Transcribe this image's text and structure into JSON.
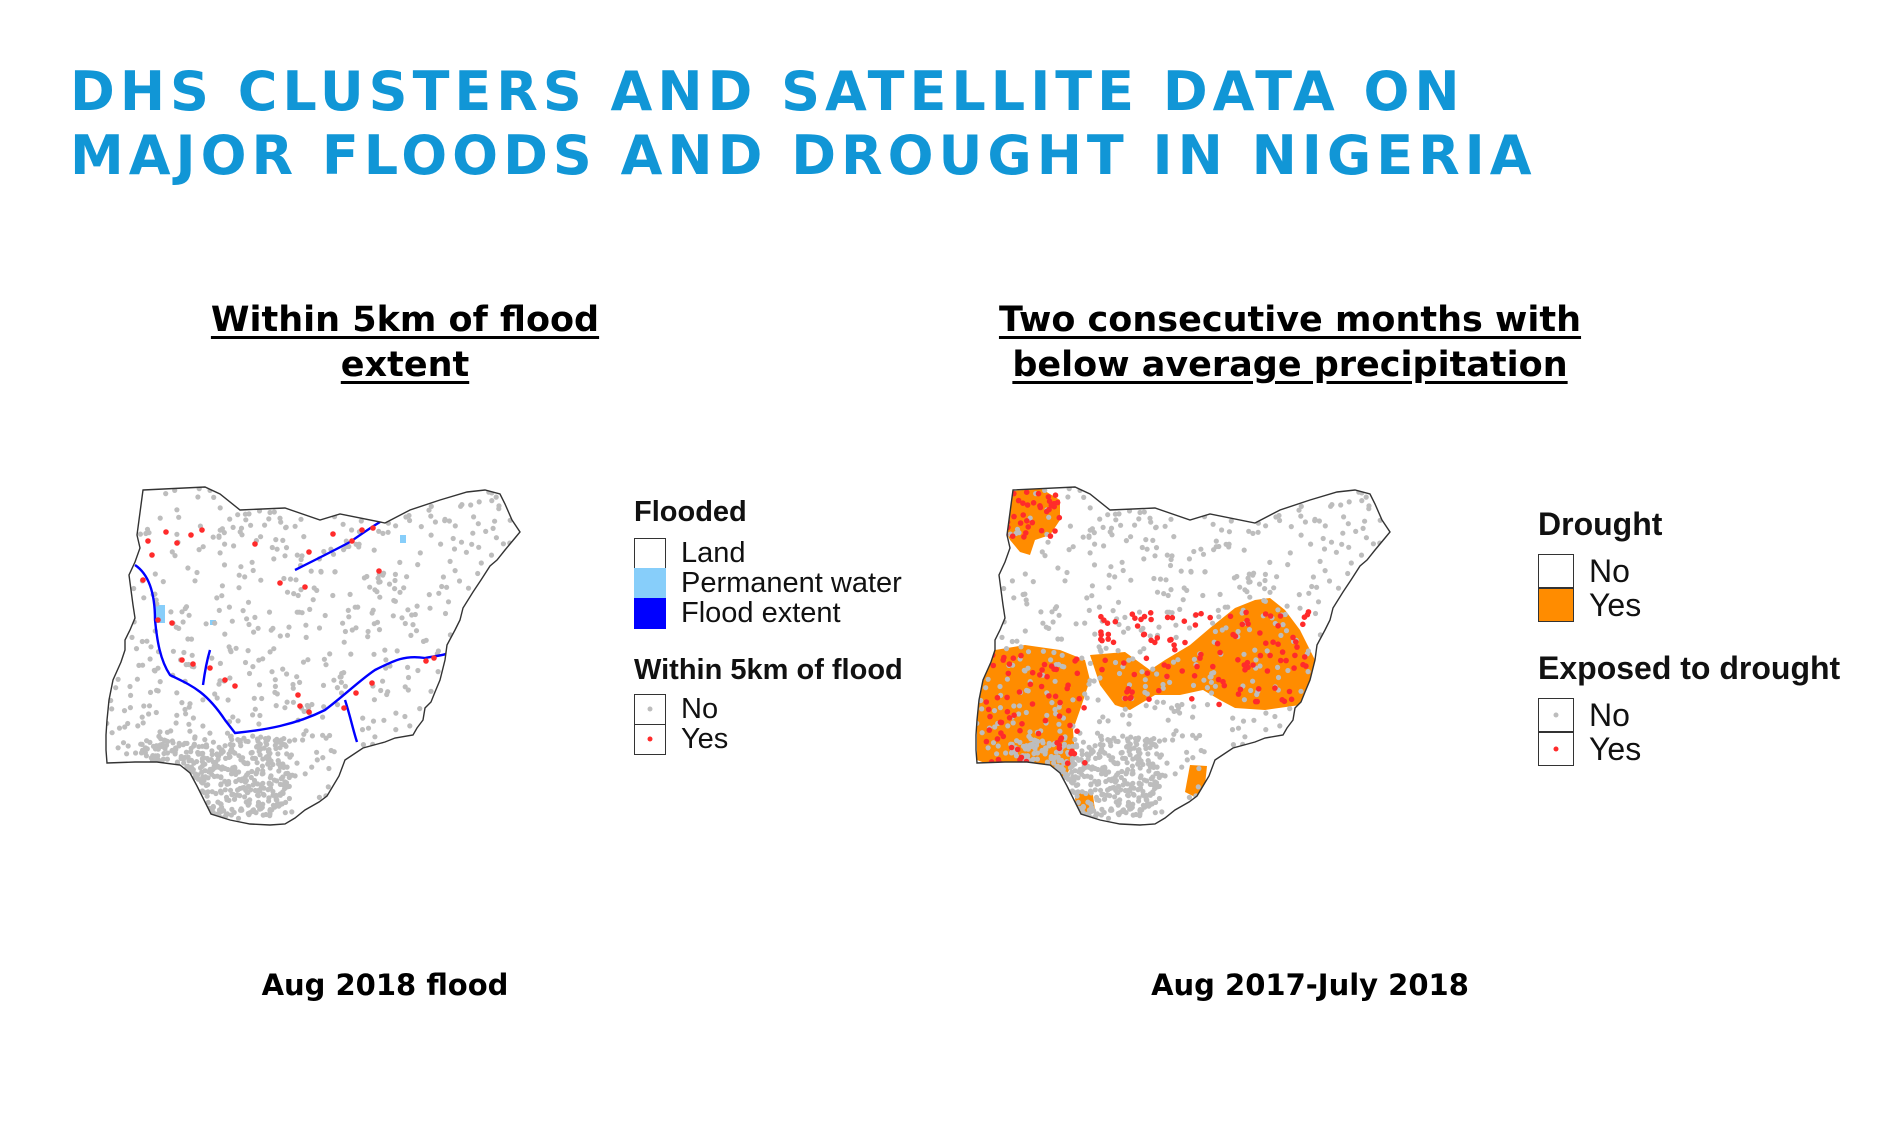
{
  "title": {
    "line1": "DHS CLUSTERS AND SATELLITE DATA ON",
    "line2": "MAJOR FLOODS AND DROUGHT IN NIGERIA"
  },
  "flood_panel": {
    "heading_line1": "Within 5km of flood",
    "heading_line2": "extent",
    "caption": "Aug 2018 flood",
    "legend": {
      "flooded_title": "Flooded",
      "flooded_items": [
        {
          "label": "Land",
          "color": "#ffffff"
        },
        {
          "label": "Permanent water",
          "color": "#87cefa"
        },
        {
          "label": "Flood extent",
          "color": "#0000ff"
        }
      ],
      "within_title": "Within 5km of flood",
      "within_items": [
        {
          "label": "No",
          "dot_color": "#bdbdbd"
        },
        {
          "label": "Yes",
          "dot_color": "#ff2b2b"
        }
      ]
    }
  },
  "drought_panel": {
    "heading_line1": "Two consecutive months with",
    "heading_line2": "below average precipitation",
    "caption": "Aug 2017-July 2018",
    "legend": {
      "drought_title": "Drought",
      "drought_items": [
        {
          "label": "No",
          "color": "#ffffff"
        },
        {
          "label": "Yes",
          "color": "#ff8c00"
        }
      ],
      "exposed_title": "Exposed to drought",
      "exposed_items": [
        {
          "label": "No",
          "dot_color": "#bdbdbd"
        },
        {
          "label": "Yes",
          "dot_color": "#ff2b2b"
        }
      ]
    }
  },
  "colors": {
    "title": "#1196d6",
    "cluster_no": "#bdbdbd",
    "cluster_yes": "#ff2b2b",
    "flood_extent": "#0000ff",
    "permanent_water": "#87cefa",
    "drought_yes": "#ff8c00",
    "country_outline": "#333333"
  }
}
